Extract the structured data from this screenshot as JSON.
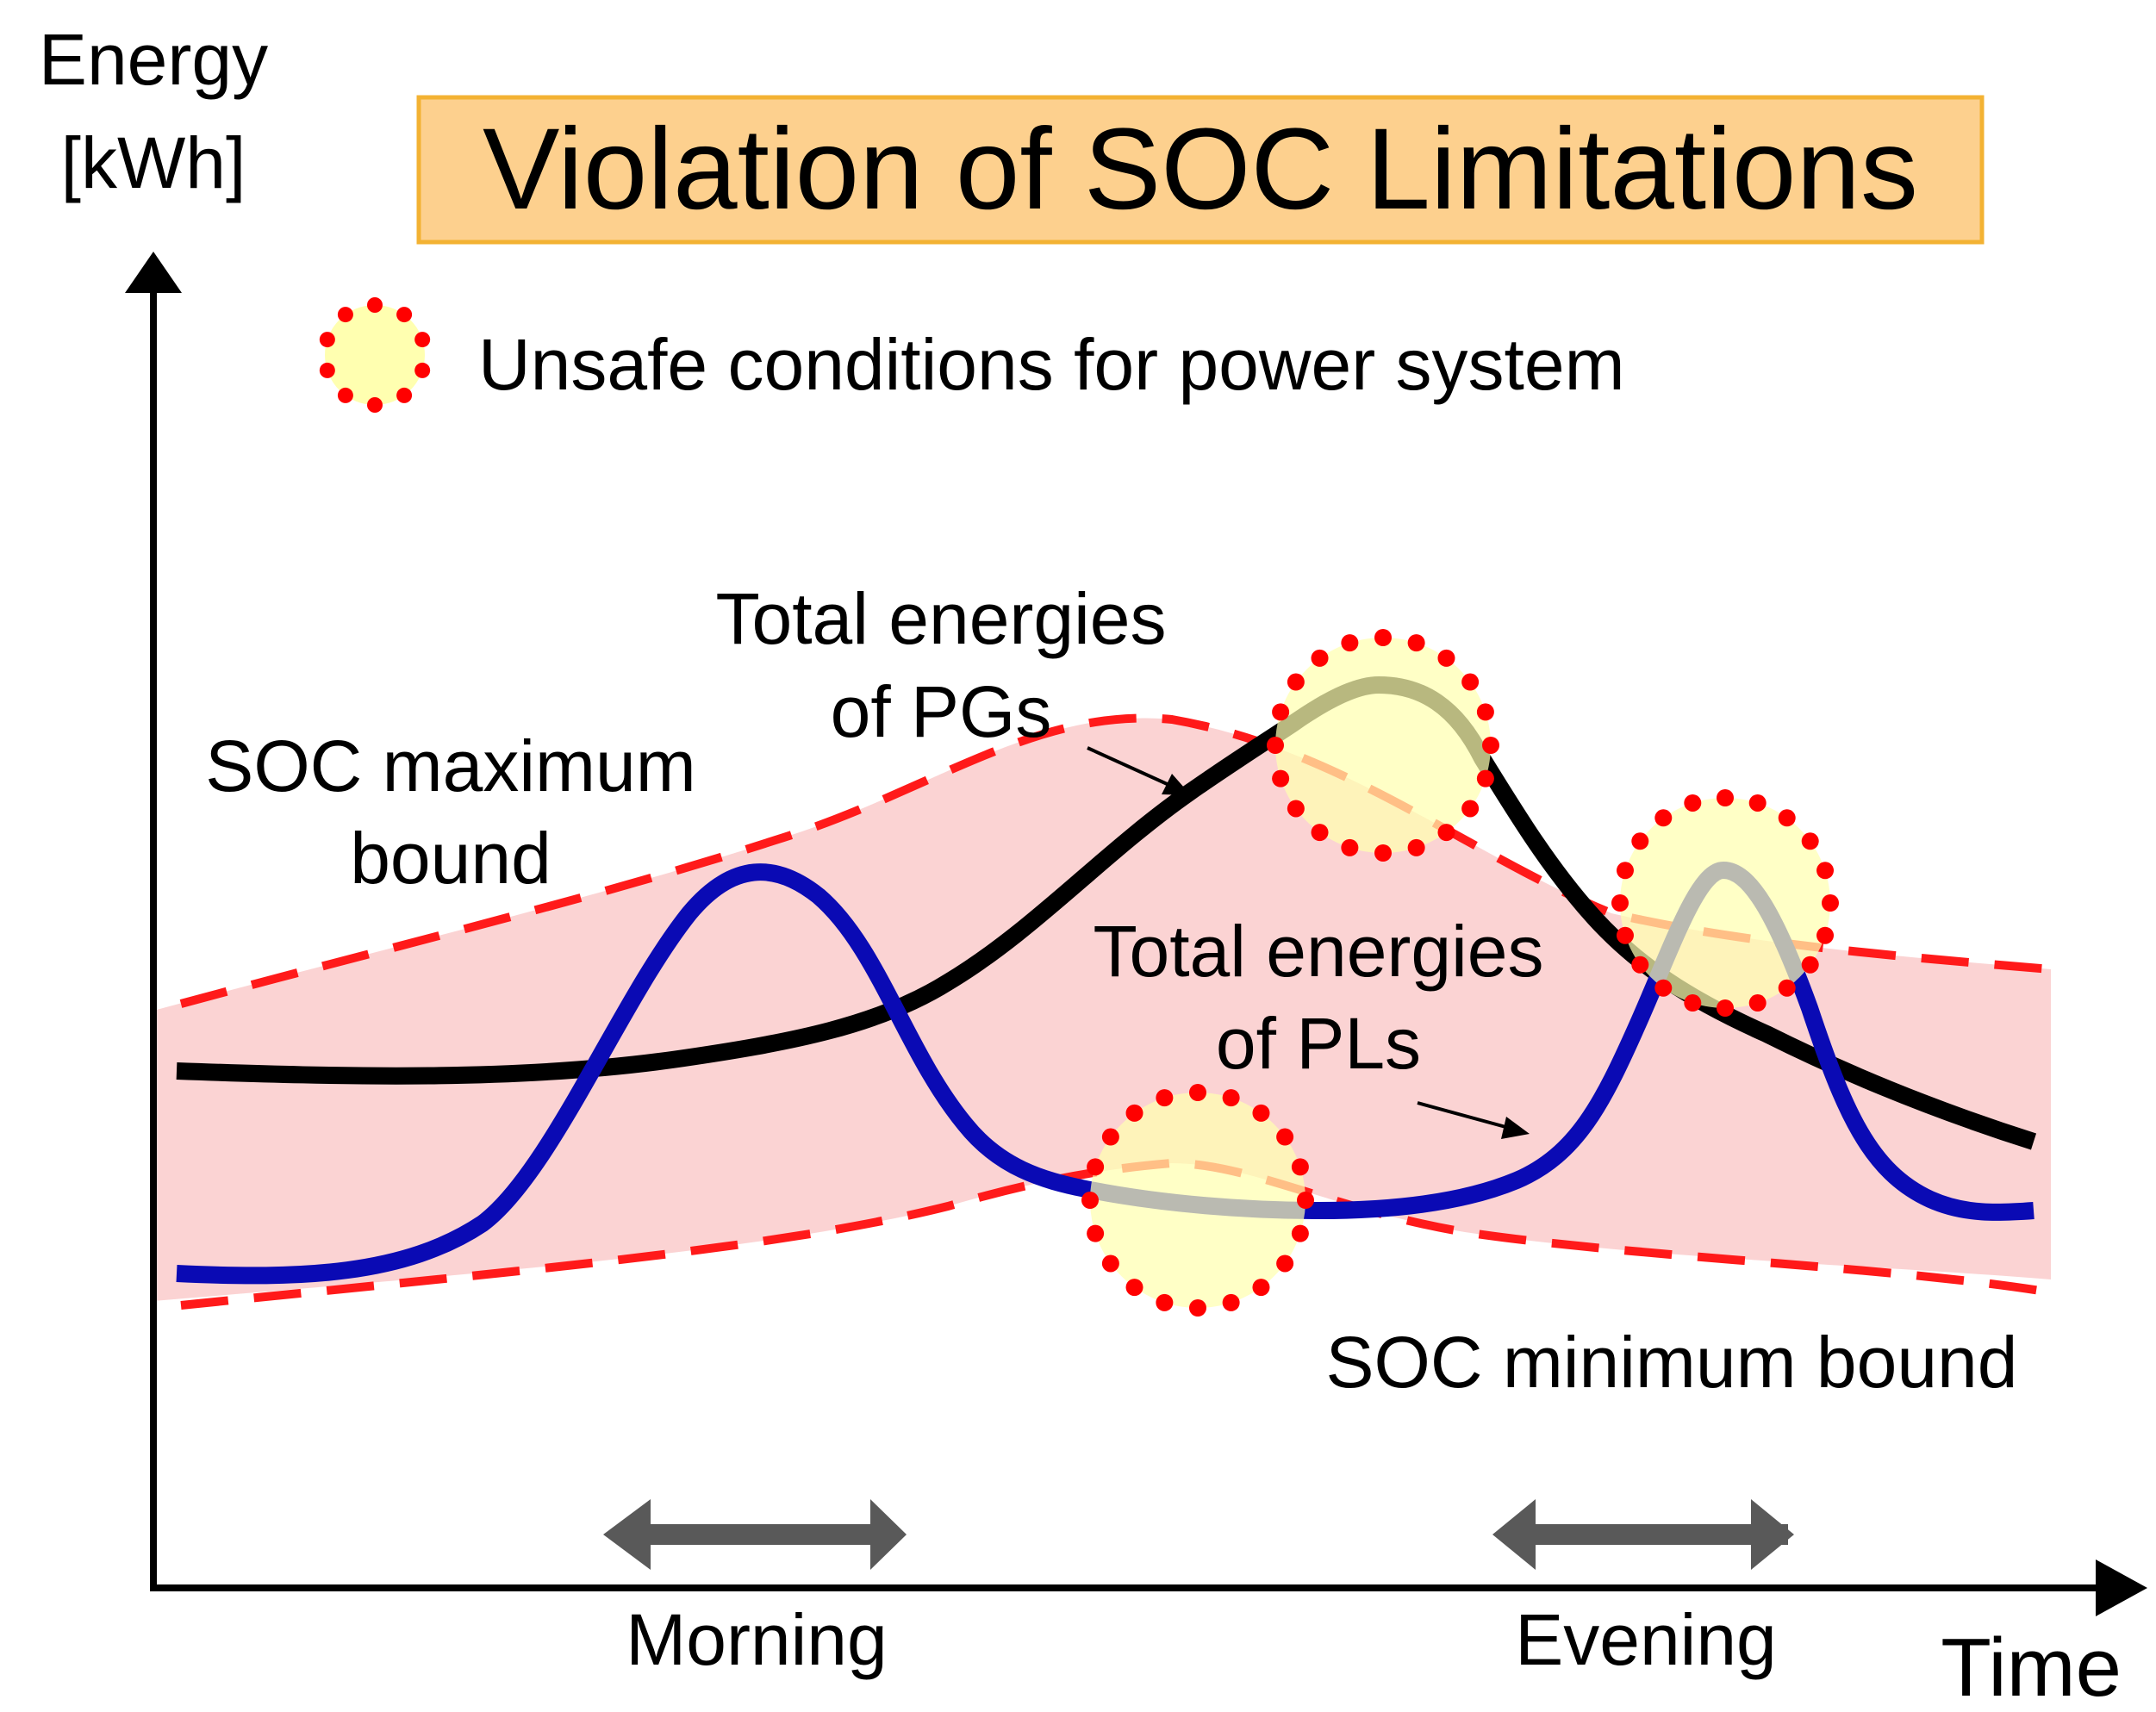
{
  "title": "Violation of SOC Limitations",
  "y_axis_label_line1": "Energy",
  "y_axis_label_line2": "[kWh]",
  "x_axis_label": "Time",
  "legend": {
    "label": "Unsafe conditions for power system"
  },
  "labels": {
    "soc_max_line1": "SOC maximum",
    "soc_max_line2": "bound",
    "soc_min": "SOC minimum bound",
    "pg_line1": "Total energies",
    "pg_line2": "of PGs",
    "pl_line1": "Total energies",
    "pl_line2": "of PLs"
  },
  "periods": {
    "morning": "Morning",
    "evening": "Evening"
  },
  "colors": {
    "title_bg": "#fdd08e",
    "title_border": "#f3b233",
    "band_fill": "#fbd3d3",
    "bound_line": "#ff1a1a",
    "pg_line": "#000000",
    "pl_line": "#0a0ab4",
    "unsafe_fill": "#ffffb0",
    "unsafe_dots": "#ff0000",
    "period_arrow": "#595959"
  },
  "icons": {
    "legend": "dotted-circle-icon",
    "period": "double-arrow-icon"
  }
}
